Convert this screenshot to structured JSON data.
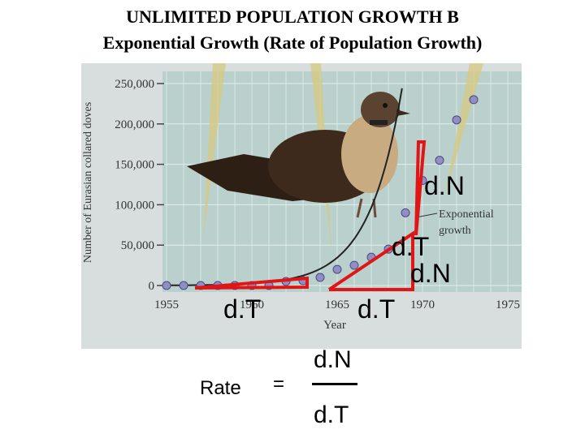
{
  "title_line1": "UNLIMITED POPULATION GROWTH B",
  "title_line2": "Exponential  Growth (Rate of Population Growth)",
  "colors": {
    "panel": "#b9d0cc",
    "grid": "#e3eeec",
    "points": "#8f8fc4",
    "curve": "#222222",
    "annotation": "#e01616",
    "bird_body": "#3d2a1c",
    "bird_breast": "#c9ab82",
    "beam": "#d8c880"
  },
  "chart_data": {
    "type": "scatter",
    "title": "",
    "xlabel": "Year",
    "ylabel": "Number of Eurasian collared doves",
    "xlim": [
      1955,
      1975
    ],
    "ylim": [
      0,
      250000
    ],
    "x_ticks": [
      "1955",
      "1960",
      "1965",
      "1970",
      "1975"
    ],
    "y_ticks": [
      "0",
      "50,000",
      "100,000",
      "150,000",
      "200,000",
      "250,000"
    ],
    "grid": true,
    "series": [
      {
        "name": "",
        "x": [
          1955,
          1956,
          1957,
          1958,
          1959,
          1960,
          1961,
          1962,
          1963,
          1964,
          1965,
          1966,
          1967,
          1968,
          1969,
          1970,
          1971,
          1972,
          1973
        ],
        "y": [
          0,
          0,
          0,
          0,
          0,
          0,
          0,
          5000,
          6000,
          10000,
          20000,
          25000,
          35000,
          45000,
          90000,
          130000,
          155000,
          205000,
          230000
        ]
      }
    ],
    "curve_label": "Exponential growth",
    "curve_label_lines": [
      "Exponential",
      "growth"
    ]
  },
  "annotations": {
    "dN_1": "d.N",
    "dT_1": "d.T",
    "dN_2": "d.N",
    "dT_2": "d.T",
    "dT_3": "d.T",
    "rate_label": "Rate",
    "equals": "=",
    "frac_num": "d.N",
    "frac_den": "d.T"
  }
}
